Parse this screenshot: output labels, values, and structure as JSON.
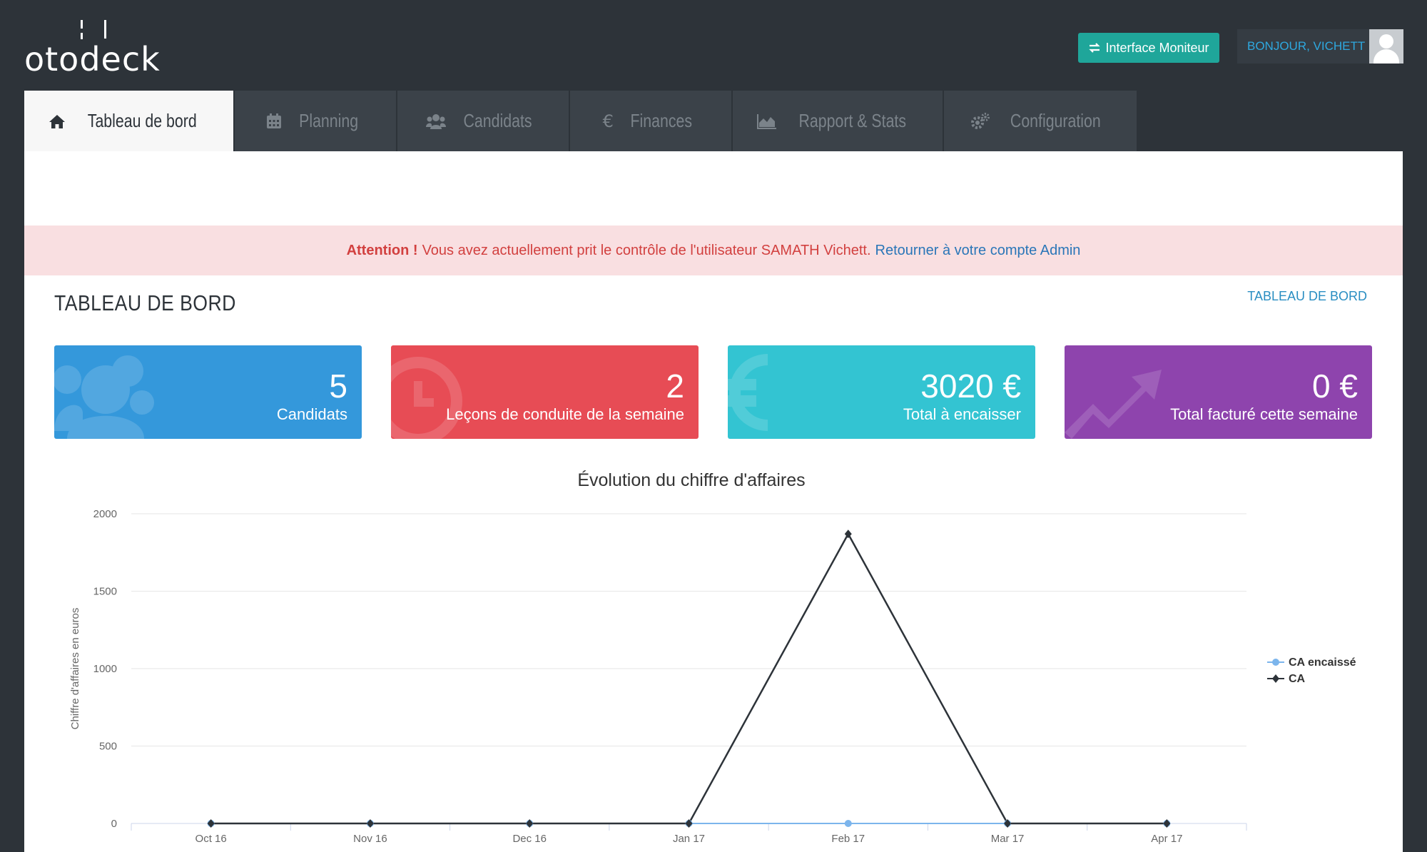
{
  "header": {
    "logo_text": "otodeck",
    "moniteur_button": "Interface Moniteur",
    "greeting": "BONJOUR, VICHETT"
  },
  "tabs": [
    {
      "label": "Tableau de bord",
      "icon": "home-icon",
      "active": true
    },
    {
      "label": "Planning",
      "icon": "calendar-icon",
      "active": false
    },
    {
      "label": "Candidats",
      "icon": "users-icon",
      "active": false
    },
    {
      "label": "Finances",
      "icon": "euro-icon",
      "active": false
    },
    {
      "label": "Rapport & Stats",
      "icon": "area-chart-icon",
      "active": false
    },
    {
      "label": "Configuration",
      "icon": "gears-icon",
      "active": false
    }
  ],
  "alert": {
    "strong": "Attention !",
    "message": "Vous avez actuellement prit le contrôle de l'utilisateur SAMATH Vichett.",
    "link": "Retourner à votre compte Admin"
  },
  "page": {
    "title": "TABLEAU DE BORD",
    "breadcrumb": "TABLEAU DE BORD"
  },
  "stats": [
    {
      "value": "5",
      "label": "Candidats",
      "color": "#3498db",
      "icon": "users-icon"
    },
    {
      "value": "2",
      "label": "Leçons de conduite de la semaine",
      "color": "#e74c55",
      "icon": "clock-icon"
    },
    {
      "value": "3020 €",
      "label": "Total à encaisser",
      "color": "#33c4d2",
      "icon": "euro-icon"
    },
    {
      "value": "0 €",
      "label": "Total facturé cette semaine",
      "color": "#8e44ad",
      "icon": "trending-up-icon"
    }
  ],
  "colors": {
    "ca_encaisse": "#7cb5ec",
    "ca": "#2d3339"
  },
  "chart_data": {
    "type": "line",
    "title": "Évolution du chiffre d'affaires",
    "ylabel": "Chiffre d'affaires en euros",
    "xlabel": "",
    "categories": [
      "Oct 16",
      "Nov 16",
      "Dec 16",
      "Jan 17",
      "Feb 17",
      "Mar 17",
      "Apr 17"
    ],
    "ylim": [
      0,
      2000
    ],
    "yticks": [
      0,
      500,
      1000,
      1500,
      2000
    ],
    "grid": true,
    "legend_position": "right",
    "series": [
      {
        "name": "CA encaissé",
        "values": [
          0,
          0,
          0,
          0,
          0,
          0,
          0
        ]
      },
      {
        "name": "CA",
        "values": [
          0,
          0,
          0,
          0,
          1870,
          0,
          0
        ]
      }
    ]
  }
}
